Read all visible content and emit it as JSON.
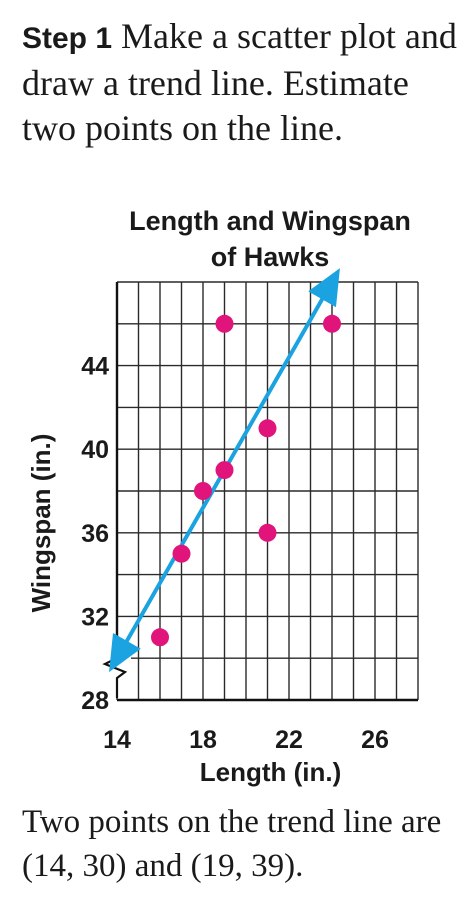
{
  "step": {
    "label": "Step 1",
    "text": "Make a scatter plot and draw a trend line. Estimate two points on the line."
  },
  "caption": "Two points on the trend line are (14, 30) and (19, 39).",
  "colors": {
    "points": "#e0147a",
    "trend_line": "#1aa3e0",
    "grid": "#2a2a2a"
  },
  "chart_data": {
    "type": "scatter",
    "title_line1": "Length and Wingspan",
    "title_line2": "of Hawks",
    "xlabel": "Length (in.)",
    "ylabel": "Wingspan (in.)",
    "xlim": [
      14,
      28
    ],
    "ylim": [
      28,
      48
    ],
    "x_ticks": [
      14,
      18,
      22,
      26
    ],
    "y_ticks": [
      28,
      32,
      36,
      40,
      44
    ],
    "grid": true,
    "axis_break": "y-axis near origin",
    "points": [
      {
        "x": 16,
        "y": 31
      },
      {
        "x": 17,
        "y": 35
      },
      {
        "x": 18,
        "y": 38
      },
      {
        "x": 19,
        "y": 39
      },
      {
        "x": 19,
        "y": 46
      },
      {
        "x": 21,
        "y": 41
      },
      {
        "x": 21,
        "y": 36
      },
      {
        "x": 24,
        "y": 46
      }
    ],
    "trend_line": {
      "from": [
        14,
        30
      ],
      "to": [
        24,
        48
      ],
      "arrows": "both ends"
    }
  }
}
